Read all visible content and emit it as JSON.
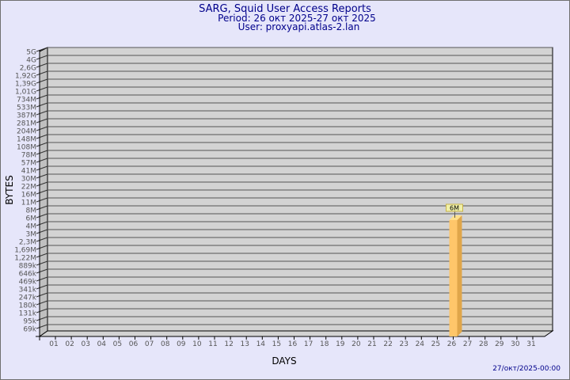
{
  "header": {
    "title": "SARG, Squid User Access Reports",
    "period": "Period: 26 окт 2025-27 окт 2025",
    "user": "User: proxyapi.atlas-2.lan"
  },
  "footer": {
    "timestamp": "27/окт/2025-00:00"
  },
  "colors": {
    "background": "#e6e6fa",
    "plot": "#d3d3d3",
    "bar": "#ffc66a",
    "bar_side": "#e0a64a",
    "title": "#00008b"
  },
  "chart_data": {
    "type": "bar",
    "xlabel": "DAYS",
    "ylabel": "BYTES",
    "y_scale": "log-like, categorical tick labels",
    "y_ticks": [
      "5G",
      "4G",
      "2,6G",
      "1,92G",
      "1,39G",
      "1,01G",
      "734M",
      "533M",
      "387M",
      "281M",
      "204M",
      "148M",
      "108M",
      "78M",
      "57M",
      "41M",
      "30M",
      "22M",
      "16M",
      "11M",
      "8M",
      "6M",
      "4M",
      "3M",
      "2,3M",
      "1,69M",
      "1,22M",
      "889k",
      "646k",
      "469k",
      "341k",
      "247k",
      "180k",
      "131k",
      "95k",
      "69k"
    ],
    "categories": [
      "01",
      "02",
      "03",
      "04",
      "05",
      "06",
      "07",
      "08",
      "09",
      "10",
      "11",
      "12",
      "13",
      "14",
      "15",
      "16",
      "17",
      "18",
      "19",
      "20",
      "21",
      "22",
      "23",
      "24",
      "25",
      "26",
      "27",
      "28",
      "29",
      "30",
      "31"
    ],
    "bars": [
      {
        "day": "26",
        "value": "6M",
        "label": "6M"
      }
    ],
    "grid": true
  }
}
